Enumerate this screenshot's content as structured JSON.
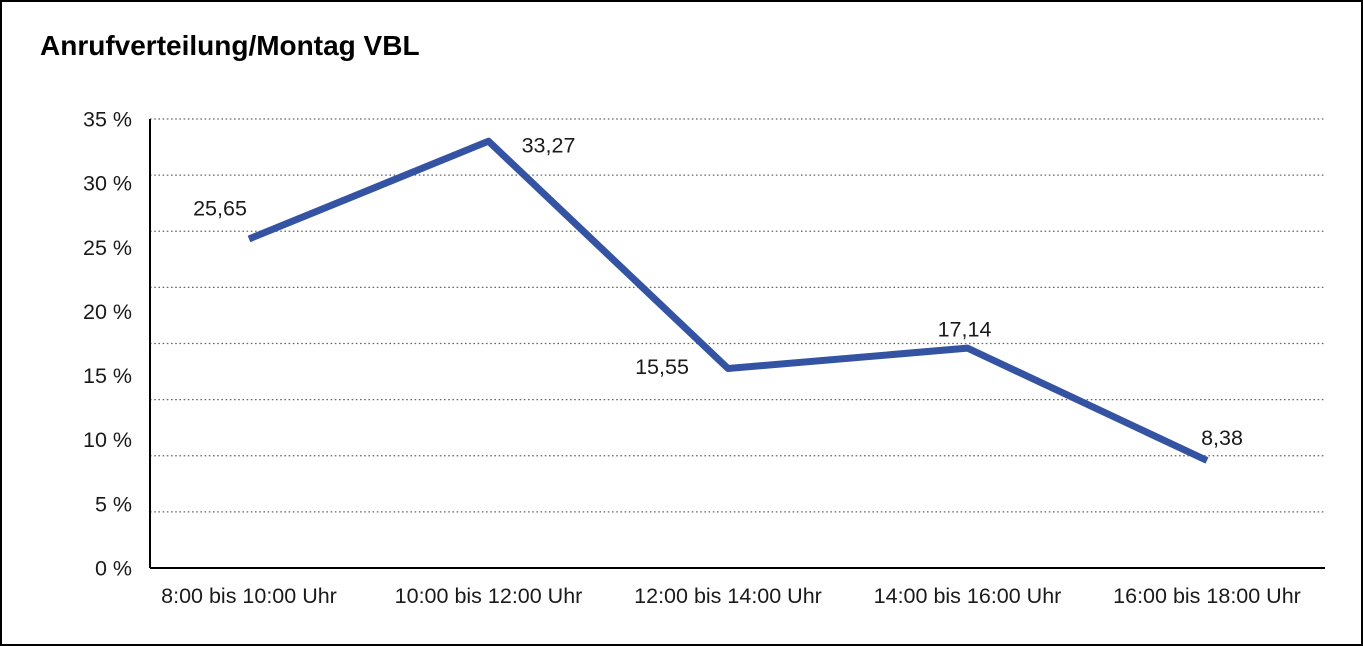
{
  "chart_data": {
    "type": "line",
    "title": "Anrufverteilung/Montag VBL",
    "categories": [
      "8:00 bis 10:00 Uhr",
      "10:00 bis 12:00 Uhr",
      "12:00 bis 14:00 Uhr",
      "14:00 bis 16:00 Uhr",
      "16:00 bis 18:00 Uhr"
    ],
    "series": [
      {
        "name": "Anrufverteilung",
        "values": [
          25.65,
          33.27,
          15.55,
          17.14,
          8.38
        ],
        "data_labels": [
          "25,65",
          "33,27",
          "15,55",
          "17,14",
          "8,38"
        ]
      }
    ],
    "xlabel": "",
    "ylabel": "",
    "ylim": [
      0,
      35
    ],
    "y_ticks": [
      "35 %",
      "30 %",
      "25 %",
      "20 %",
      "15 %",
      "10 %",
      "5 %",
      "0 %"
    ],
    "grid": "horizontal-dotted",
    "legend_position": "none",
    "colors": {
      "line": "#3454A3",
      "grid": "#666666",
      "axis": "#000000",
      "text": "#1a1a1a",
      "background": "#ffffff",
      "frame_border": "#000000"
    }
  }
}
